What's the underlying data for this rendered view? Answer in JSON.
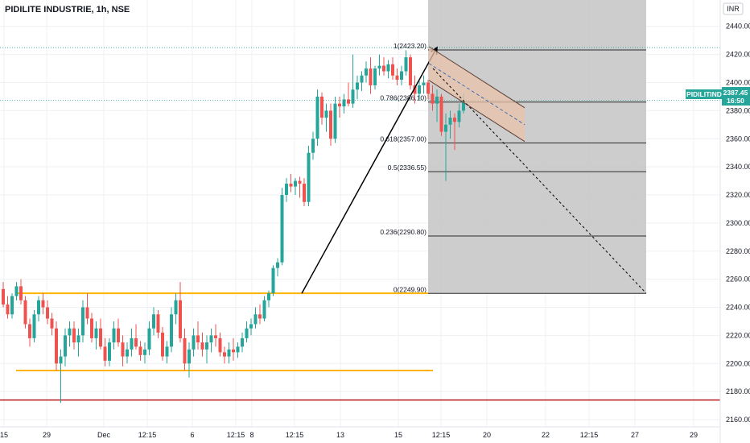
{
  "header": {
    "title": "PIDILITE INDUSTRIE, 1h, NSE"
  },
  "currency": "INR",
  "price_badge": {
    "symbol": "PIDILITIND",
    "price": "2387.45",
    "time": "16:50"
  },
  "colors": {
    "up": "#26a69a",
    "down": "#ef5350",
    "support": "#ffb300",
    "low_line": "#b71c1c",
    "fib_zone": "#c8c8c8",
    "channel_fill": "#e8c2a8",
    "channel_line": "#5d4037",
    "grid": "#eef0f3"
  },
  "chart_data": {
    "type": "candlestick",
    "title": "PIDILITE INDUSTRIE, 1h, NSE",
    "ylim": [
      2150,
      2450
    ],
    "y_ticks": [
      2160,
      2180,
      2200,
      2220,
      2240,
      2260,
      2280,
      2300,
      2320,
      2340,
      2360,
      2380,
      2400,
      2420,
      2440
    ],
    "x_ticks": [
      "15",
      "29",
      "Dec",
      "12:15",
      "6",
      "12:15",
      "8",
      "12:15",
      "13",
      "15",
      "12:15",
      "20",
      "22",
      "12:15",
      "27",
      "29"
    ],
    "candles": [
      {
        "o": 2253,
        "h": 2258,
        "l": 2240,
        "c": 2242
      },
      {
        "o": 2242,
        "h": 2248,
        "l": 2232,
        "c": 2235
      },
      {
        "o": 2235,
        "h": 2250,
        "l": 2232,
        "c": 2248
      },
      {
        "o": 2248,
        "h": 2258,
        "l": 2245,
        "c": 2255
      },
      {
        "o": 2255,
        "h": 2260,
        "l": 2242,
        "c": 2245
      },
      {
        "o": 2245,
        "h": 2248,
        "l": 2225,
        "c": 2228
      },
      {
        "o": 2228,
        "h": 2232,
        "l": 2212,
        "c": 2218
      },
      {
        "o": 2218,
        "h": 2238,
        "l": 2215,
        "c": 2235
      },
      {
        "o": 2235,
        "h": 2248,
        "l": 2230,
        "c": 2245
      },
      {
        "o": 2245,
        "h": 2250,
        "l": 2235,
        "c": 2240
      },
      {
        "o": 2240,
        "h": 2245,
        "l": 2228,
        "c": 2232
      },
      {
        "o": 2232,
        "h": 2236,
        "l": 2220,
        "c": 2225
      },
      {
        "o": 2225,
        "h": 2230,
        "l": 2195,
        "c": 2200
      },
      {
        "o": 2200,
        "h": 2210,
        "l": 2172,
        "c": 2205
      },
      {
        "o": 2205,
        "h": 2225,
        "l": 2198,
        "c": 2220
      },
      {
        "o": 2220,
        "h": 2230,
        "l": 2212,
        "c": 2225
      },
      {
        "o": 2225,
        "h": 2230,
        "l": 2210,
        "c": 2215
      },
      {
        "o": 2215,
        "h": 2225,
        "l": 2205,
        "c": 2220
      },
      {
        "o": 2220,
        "h": 2245,
        "l": 2215,
        "c": 2240
      },
      {
        "o": 2240,
        "h": 2250,
        "l": 2228,
        "c": 2232
      },
      {
        "o": 2232,
        "h": 2236,
        "l": 2215,
        "c": 2218
      },
      {
        "o": 2218,
        "h": 2230,
        "l": 2210,
        "c": 2225
      },
      {
        "o": 2225,
        "h": 2232,
        "l": 2210,
        "c": 2212
      },
      {
        "o": 2212,
        "h": 2218,
        "l": 2198,
        "c": 2202
      },
      {
        "o": 2202,
        "h": 2218,
        "l": 2198,
        "c": 2215
      },
      {
        "o": 2215,
        "h": 2230,
        "l": 2210,
        "c": 2225
      },
      {
        "o": 2225,
        "h": 2232,
        "l": 2212,
        "c": 2215
      },
      {
        "o": 2215,
        "h": 2220,
        "l": 2198,
        "c": 2205
      },
      {
        "o": 2205,
        "h": 2215,
        "l": 2200,
        "c": 2210
      },
      {
        "o": 2210,
        "h": 2225,
        "l": 2205,
        "c": 2218
      },
      {
        "o": 2218,
        "h": 2228,
        "l": 2210,
        "c": 2212
      },
      {
        "o": 2212,
        "h": 2216,
        "l": 2202,
        "c": 2206
      },
      {
        "o": 2206,
        "h": 2215,
        "l": 2200,
        "c": 2210
      },
      {
        "o": 2210,
        "h": 2230,
        "l": 2206,
        "c": 2225
      },
      {
        "o": 2225,
        "h": 2240,
        "l": 2220,
        "c": 2235
      },
      {
        "o": 2235,
        "h": 2238,
        "l": 2218,
        "c": 2222
      },
      {
        "o": 2222,
        "h": 2226,
        "l": 2202,
        "c": 2205
      },
      {
        "o": 2205,
        "h": 2216,
        "l": 2200,
        "c": 2212
      },
      {
        "o": 2212,
        "h": 2240,
        "l": 2208,
        "c": 2235
      },
      {
        "o": 2235,
        "h": 2250,
        "l": 2228,
        "c": 2245
      },
      {
        "o": 2245,
        "h": 2258,
        "l": 2215,
        "c": 2218
      },
      {
        "o": 2218,
        "h": 2225,
        "l": 2195,
        "c": 2200
      },
      {
        "o": 2200,
        "h": 2215,
        "l": 2190,
        "c": 2210
      },
      {
        "o": 2210,
        "h": 2225,
        "l": 2205,
        "c": 2220
      },
      {
        "o": 2220,
        "h": 2230,
        "l": 2210,
        "c": 2215
      },
      {
        "o": 2215,
        "h": 2222,
        "l": 2205,
        "c": 2210
      },
      {
        "o": 2210,
        "h": 2220,
        "l": 2200,
        "c": 2215
      },
      {
        "o": 2215,
        "h": 2225,
        "l": 2208,
        "c": 2220
      },
      {
        "o": 2220,
        "h": 2228,
        "l": 2212,
        "c": 2218
      },
      {
        "o": 2218,
        "h": 2222,
        "l": 2205,
        "c": 2208
      },
      {
        "o": 2208,
        "h": 2212,
        "l": 2200,
        "c": 2205
      },
      {
        "o": 2205,
        "h": 2215,
        "l": 2200,
        "c": 2210
      },
      {
        "o": 2210,
        "h": 2218,
        "l": 2202,
        "c": 2208
      },
      {
        "o": 2208,
        "h": 2215,
        "l": 2204,
        "c": 2212
      },
      {
        "o": 2212,
        "h": 2222,
        "l": 2208,
        "c": 2218
      },
      {
        "o": 2218,
        "h": 2230,
        "l": 2215,
        "c": 2225
      },
      {
        "o": 2225,
        "h": 2232,
        "l": 2220,
        "c": 2228
      },
      {
        "o": 2228,
        "h": 2240,
        "l": 2225,
        "c": 2235
      },
      {
        "o": 2235,
        "h": 2242,
        "l": 2228,
        "c": 2232
      },
      {
        "o": 2232,
        "h": 2248,
        "l": 2230,
        "c": 2245
      },
      {
        "o": 2245,
        "h": 2252,
        "l": 2240,
        "c": 2250
      },
      {
        "o": 2250,
        "h": 2270,
        "l": 2248,
        "c": 2268
      },
      {
        "o": 2268,
        "h": 2275,
        "l": 2262,
        "c": 2272
      },
      {
        "o": 2272,
        "h": 2325,
        "l": 2270,
        "c": 2320
      },
      {
        "o": 2320,
        "h": 2332,
        "l": 2315,
        "c": 2328
      },
      {
        "o": 2328,
        "h": 2335,
        "l": 2322,
        "c": 2326
      },
      {
        "o": 2326,
        "h": 2332,
        "l": 2320,
        "c": 2330
      },
      {
        "o": 2330,
        "h": 2333,
        "l": 2318,
        "c": 2328
      },
      {
        "o": 2328,
        "h": 2332,
        "l": 2312,
        "c": 2315
      },
      {
        "o": 2315,
        "h": 2355,
        "l": 2312,
        "c": 2350
      },
      {
        "o": 2350,
        "h": 2365,
        "l": 2345,
        "c": 2360
      },
      {
        "o": 2360,
        "h": 2395,
        "l": 2355,
        "c": 2390
      },
      {
        "o": 2390,
        "h": 2393,
        "l": 2370,
        "c": 2375
      },
      {
        "o": 2375,
        "h": 2385,
        "l": 2365,
        "c": 2380
      },
      {
        "o": 2380,
        "h": 2385,
        "l": 2355,
        "c": 2360
      },
      {
        "o": 2360,
        "h": 2390,
        "l": 2357,
        "c": 2385
      },
      {
        "o": 2385,
        "h": 2390,
        "l": 2375,
        "c": 2383
      },
      {
        "o": 2383,
        "h": 2392,
        "l": 2378,
        "c": 2388
      },
      {
        "o": 2388,
        "h": 2400,
        "l": 2383,
        "c": 2385
      },
      {
        "o": 2385,
        "h": 2420,
        "l": 2382,
        "c": 2395
      },
      {
        "o": 2395,
        "h": 2405,
        "l": 2388,
        "c": 2400
      },
      {
        "o": 2400,
        "h": 2408,
        "l": 2394,
        "c": 2405
      },
      {
        "o": 2405,
        "h": 2415,
        "l": 2400,
        "c": 2410
      },
      {
        "o": 2410,
        "h": 2418,
        "l": 2392,
        "c": 2398
      },
      {
        "o": 2398,
        "h": 2412,
        "l": 2395,
        "c": 2410
      },
      {
        "o": 2410,
        "h": 2420,
        "l": 2405,
        "c": 2412
      },
      {
        "o": 2412,
        "h": 2418,
        "l": 2405,
        "c": 2408
      },
      {
        "o": 2408,
        "h": 2416,
        "l": 2403,
        "c": 2413
      },
      {
        "o": 2413,
        "h": 2418,
        "l": 2402,
        "c": 2405
      },
      {
        "o": 2405,
        "h": 2410,
        "l": 2398,
        "c": 2402
      },
      {
        "o": 2402,
        "h": 2412,
        "l": 2398,
        "c": 2408
      },
      {
        "o": 2408,
        "h": 2423,
        "l": 2405,
        "c": 2418
      },
      {
        "o": 2418,
        "h": 2420,
        "l": 2395,
        "c": 2398
      },
      {
        "o": 2398,
        "h": 2405,
        "l": 2385,
        "c": 2392
      },
      {
        "o": 2392,
        "h": 2402,
        "l": 2388,
        "c": 2398
      },
      {
        "o": 2398,
        "h": 2405,
        "l": 2392,
        "c": 2400
      },
      {
        "o": 2400,
        "h": 2402,
        "l": 2388,
        "c": 2392
      },
      {
        "o": 2392,
        "h": 2398,
        "l": 2380,
        "c": 2385
      },
      {
        "o": 2385,
        "h": 2395,
        "l": 2372,
        "c": 2390
      },
      {
        "o": 2390,
        "h": 2392,
        "l": 2362,
        "c": 2365
      },
      {
        "o": 2365,
        "h": 2378,
        "l": 2330,
        "c": 2370
      },
      {
        "o": 2370,
        "h": 2380,
        "l": 2360,
        "c": 2375
      },
      {
        "o": 2375,
        "h": 2378,
        "l": 2352,
        "c": 2372
      },
      {
        "o": 2372,
        "h": 2385,
        "l": 2368,
        "c": 2380
      },
      {
        "o": 2380,
        "h": 2392,
        "l": 2378,
        "c": 2387
      }
    ],
    "fib_levels": [
      {
        "ratio": "1",
        "price": 2423.2,
        "label": "1(2423.20)"
      },
      {
        "ratio": "0.786",
        "price": 2386.1,
        "label": "0.786(2386.10)"
      },
      {
        "ratio": "0.618",
        "price": 2357.0,
        "label": "0.618(2357.00)"
      },
      {
        "ratio": "0.5",
        "price": 2336.55,
        "label": "0.5(2336.55)"
      },
      {
        "ratio": "0.236",
        "price": 2290.8,
        "label": "0.236(2290.80)"
      },
      {
        "ratio": "0",
        "price": 2249.9,
        "label": "0(2249.90)"
      }
    ],
    "horizontal_lines": [
      {
        "role": "resistance",
        "price": 2250,
        "color": "#ffb300"
      },
      {
        "role": "support",
        "price": 2195,
        "color": "#ffb300"
      },
      {
        "role": "low",
        "price": 2174,
        "color": "#b71c1c"
      }
    ],
    "trend_arrow": {
      "from": 2249.9,
      "to": 2423.2
    },
    "channel": {
      "start": 2421,
      "end": 2374,
      "width": 24
    },
    "projection": {
      "from": 2410,
      "to": 2250
    }
  }
}
